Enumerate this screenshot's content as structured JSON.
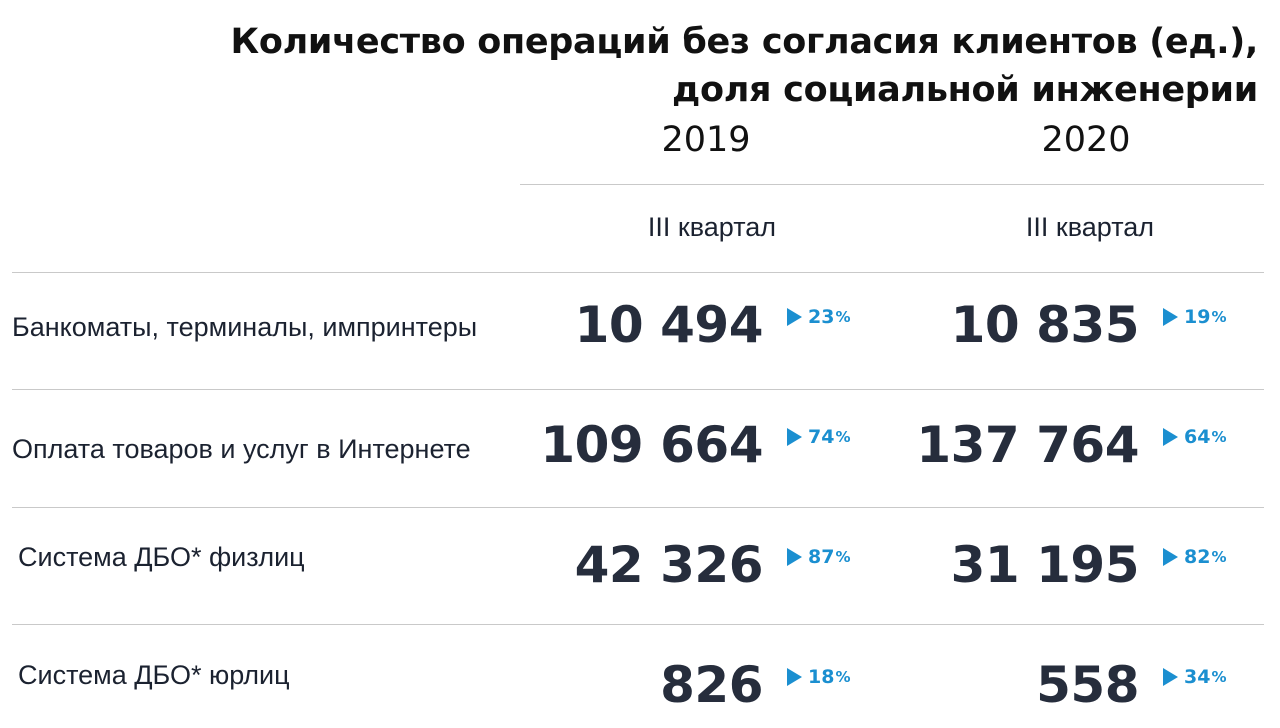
{
  "title_lines": [
    "Количество операций без согласия клиентов (ед.),",
    "доля социальной инженерии"
  ],
  "columns": [
    {
      "year": "2019",
      "period": "III квартал"
    },
    {
      "year": "2020",
      "period": "III квартал"
    }
  ],
  "rows": [
    {
      "label": "Банкоматы, терминалы, импринтеры",
      "cells": [
        {
          "value": "10 494",
          "share": "23",
          "unit": "%"
        },
        {
          "value": "10 835",
          "share": "19",
          "unit": "%"
        }
      ]
    },
    {
      "label": "Оплата товаров и услуг в Интернете",
      "cells": [
        {
          "value": "109 664",
          "share": "74",
          "unit": "%"
        },
        {
          "value": "137 764",
          "share": "64",
          "unit": "%"
        }
      ]
    },
    {
      "label": "Система ДБО* физлиц",
      "cells": [
        {
          "value": "42 326",
          "share": "87",
          "unit": "%"
        },
        {
          "value": "31 195",
          "share": "82",
          "unit": "%"
        }
      ]
    },
    {
      "label": "Система ДБО* юрлиц",
      "cells": [
        {
          "value": "826",
          "share": "18",
          "unit": "%"
        },
        {
          "value": "558",
          "share": "34",
          "unit": "%"
        }
      ]
    }
  ],
  "colors": {
    "value": "#262d3c",
    "share": "#1b8fd0",
    "divider": "#c9c9c9"
  },
  "chart_data": {
    "type": "table",
    "title": "Количество операций без согласия клиентов (ед.), доля социальной инженерии",
    "columns": [
      "2019 III квартал",
      "2020 III квартал"
    ],
    "categories": [
      "Банкоматы, терминалы, импринтеры",
      "Оплата товаров и услуг в Интернете",
      "Система ДБО* физлиц",
      "Система ДБО* юрлиц"
    ],
    "series": [
      {
        "name": "2019 III квартал",
        "values": [
          10494,
          109664,
          42326,
          826
        ],
        "share_pct": [
          23,
          74,
          87,
          18
        ]
      },
      {
        "name": "2020 III квартал",
        "values": [
          10835,
          137764,
          31195,
          558
        ],
        "share_pct": [
          19,
          64,
          82,
          34
        ]
      }
    ]
  }
}
